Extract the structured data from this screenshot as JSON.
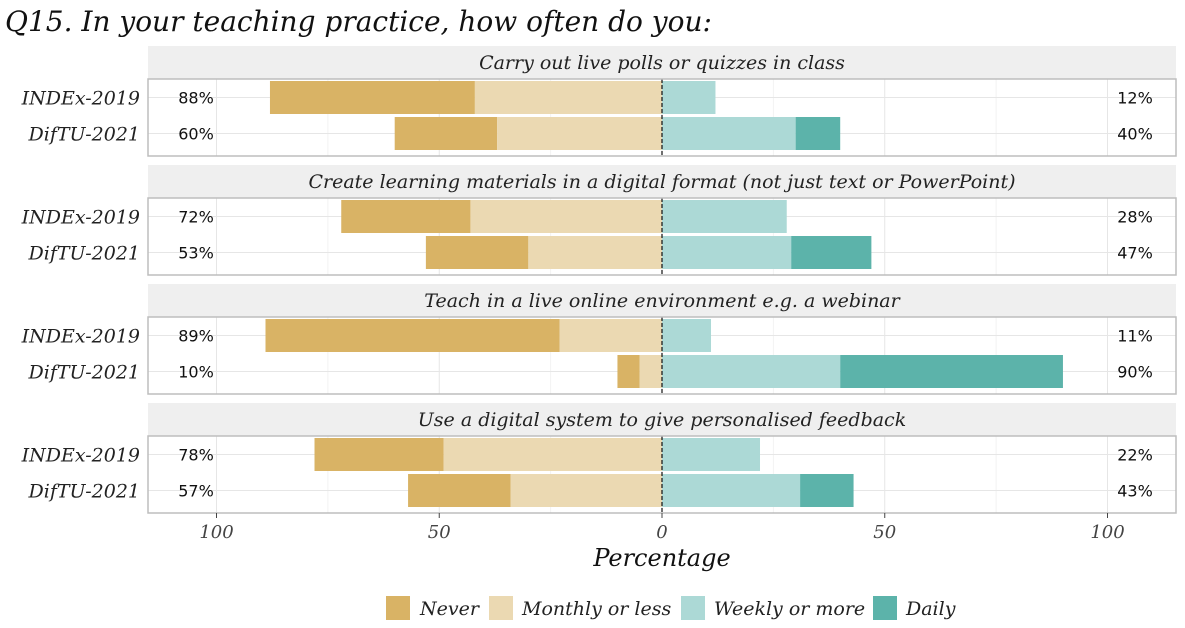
{
  "chart_data": {
    "type": "bar",
    "orientation": "horizontal-diverging-stacked",
    "title": "Q15. In your teaching practice, how often do you:",
    "xlabel": "Percentage",
    "xlim": [
      -100,
      100
    ],
    "x_ticks": [
      -100,
      -50,
      0,
      50,
      100
    ],
    "x_tick_labels": [
      "100",
      "50",
      "0",
      "50",
      "100"
    ],
    "grid": true,
    "legend_position": "bottom",
    "categories": [
      "Never",
      "Monthly or less",
      "Weekly or more",
      "Daily"
    ],
    "colors": {
      "Never": "#d9b365",
      "Monthly or less": "#ebd9b2",
      "Weekly or more": "#acd9d6",
      "Daily": "#5cb3aa"
    },
    "panels": [
      {
        "title": "Carry out live polls or quizzes in class",
        "rows": [
          {
            "label": "INDEx-2019",
            "never": 88,
            "monthly": 42,
            "weekly": 12,
            "daily": 0,
            "left_label": "88%",
            "right_label": "12%"
          },
          {
            "label": "DifTU-2021",
            "never": 60,
            "monthly": 37,
            "weekly": 30,
            "daily": 10,
            "left_label": "60%",
            "right_label": "40%"
          }
        ]
      },
      {
        "title": "Create learning materials in a digital format (not just text or PowerPoint)",
        "rows": [
          {
            "label": "INDEx-2019",
            "never": 72,
            "monthly": 43,
            "weekly": 28,
            "daily": 0,
            "left_label": "72%",
            "right_label": "28%"
          },
          {
            "label": "DifTU-2021",
            "never": 53,
            "monthly": 30,
            "weekly": 29,
            "daily": 18,
            "left_label": "53%",
            "right_label": "47%"
          }
        ]
      },
      {
        "title": "Teach in a live online environment e.g. a webinar",
        "rows": [
          {
            "label": "INDEx-2019",
            "never": 89,
            "monthly": 23,
            "weekly": 11,
            "daily": 0,
            "left_label": "89%",
            "right_label": "11%"
          },
          {
            "label": "DifTU-2021",
            "never": 10,
            "monthly": 5,
            "weekly": 40,
            "daily": 50,
            "left_label": "10%",
            "right_label": "90%"
          }
        ]
      },
      {
        "title": "Use a digital system to give personalised feedback",
        "rows": [
          {
            "label": "INDEx-2019",
            "never": 78,
            "monthly": 49,
            "weekly": 22,
            "daily": 0,
            "left_label": "78%",
            "right_label": "22%"
          },
          {
            "label": "DifTU-2021",
            "never": 57,
            "monthly": 34,
            "weekly": 31,
            "daily": 12,
            "left_label": "57%",
            "right_label": "43%"
          }
        ]
      }
    ]
  }
}
